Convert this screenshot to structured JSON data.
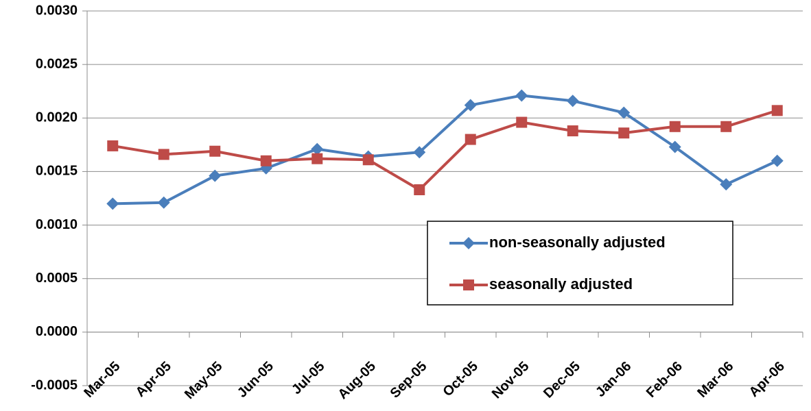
{
  "chart_data": {
    "type": "line",
    "categories": [
      "Mar-05",
      "Apr-05",
      "May-05",
      "Jun-05",
      "Jul-05",
      "Aug-05",
      "Sep-05",
      "Oct-05",
      "Nov-05",
      "Dec-05",
      "Jan-06",
      "Feb-06",
      "Mar-06",
      "Apr-06"
    ],
    "series": [
      {
        "name": "non-seasonally adjusted",
        "color": "#4a7ebb",
        "marker": "diamond",
        "values": [
          0.0012,
          0.00121,
          0.00146,
          0.00153,
          0.00171,
          0.00164,
          0.00168,
          0.00212,
          0.00221,
          0.00216,
          0.00205,
          0.00173,
          0.00138,
          0.0016
        ]
      },
      {
        "name": "seasonally adjusted",
        "color": "#be4b48",
        "marker": "square",
        "values": [
          0.00174,
          0.00166,
          0.00169,
          0.0016,
          0.00162,
          0.00161,
          0.00133,
          0.0018,
          0.00196,
          0.00188,
          0.00186,
          0.00192,
          0.00192,
          0.00207
        ]
      }
    ],
    "ylim": [
      -0.0005,
      0.003
    ],
    "yticks": [
      {
        "value": -0.0005,
        "label": "-0.0005"
      },
      {
        "value": 0,
        "label": "0.0000"
      },
      {
        "value": 0.0005,
        "label": "0.0005"
      },
      {
        "value": 0.001,
        "label": "0.0010"
      },
      {
        "value": 0.0015,
        "label": "0.0015"
      },
      {
        "value": 0.002,
        "label": "0.0020"
      },
      {
        "value": 0.0025,
        "label": "0.0025"
      },
      {
        "value": 0.003,
        "label": "0.0030"
      }
    ],
    "grid": true,
    "legend_position": "right"
  }
}
